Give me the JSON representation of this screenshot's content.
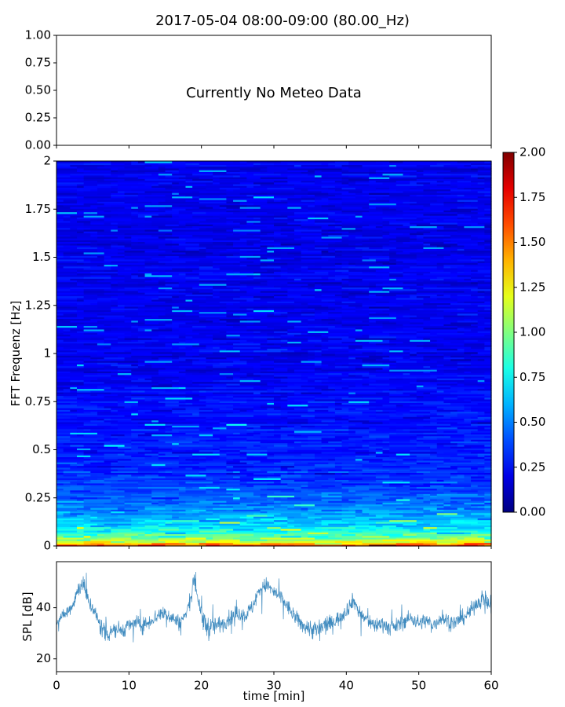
{
  "figure": {
    "title": "2017-05-04 08:00-09:00 (80.00_Hz)"
  },
  "chart_data": [
    {
      "id": "meteo",
      "type": "line",
      "title": "",
      "xlabel": "",
      "ylabel": "",
      "xlim": [
        0,
        60
      ],
      "ylim": [
        0,
        1
      ],
      "yticks": [
        0,
        0.25,
        0.5,
        0.75,
        1
      ],
      "ytick_labels": [
        "0.00",
        "0.25",
        "0.50",
        "0.75",
        "1.00"
      ],
      "xticks": [
        0,
        10,
        20,
        30,
        40,
        50,
        60
      ],
      "annotation": "Currently No Meteo Data",
      "series": []
    },
    {
      "id": "spectrogram",
      "type": "heatmap",
      "xlabel": "",
      "ylabel": "FFT Frequenz [Hz]",
      "xlim": [
        0,
        60
      ],
      "ylim": [
        0,
        2
      ],
      "yticks": [
        0,
        0.25,
        0.5,
        0.75,
        1,
        1.25,
        1.5,
        1.75,
        2
      ],
      "ytick_labels": [
        "0",
        "0.25",
        "0.5",
        "0.75",
        "1",
        "1.25",
        "1.5",
        "1.75",
        "2"
      ],
      "colormap": "jet",
      "colorbar": {
        "range": [
          0,
          2
        ],
        "ticks": [
          0,
          0.25,
          0.5,
          0.75,
          1,
          1.25,
          1.5,
          1.75,
          2
        ],
        "tick_labels": [
          "0.00",
          "0.25",
          "0.50",
          "0.75",
          "1.00",
          "1.25",
          "1.50",
          "1.75",
          "2.00"
        ]
      },
      "typical_level_by_frequency": [
        {
          "freq": 0.0,
          "level": 1.7
        },
        {
          "freq": 0.02,
          "level": 1.2
        },
        {
          "freq": 0.05,
          "level": 0.95
        },
        {
          "freq": 0.1,
          "level": 0.7
        },
        {
          "freq": 0.2,
          "level": 0.5
        },
        {
          "freq": 0.35,
          "level": 0.35
        },
        {
          "freq": 0.5,
          "level": 0.3
        },
        {
          "freq": 1.0,
          "level": 0.22
        },
        {
          "freq": 2.0,
          "level": 0.22
        }
      ]
    },
    {
      "id": "spl",
      "type": "line",
      "xlabel": "time [min]",
      "ylabel": "SPL [dB]",
      "xlim": [
        0,
        60
      ],
      "ylim": [
        15,
        58
      ],
      "yticks": [
        20,
        40
      ],
      "ytick_labels": [
        "20",
        "40"
      ],
      "xticks": [
        0,
        10,
        20,
        30,
        40,
        50,
        60
      ],
      "xtick_labels": [
        "0",
        "10",
        "20",
        "30",
        "40",
        "50",
        "60"
      ],
      "line_color": "#1f77b4",
      "series": [
        {
          "x": [
            0,
            1,
            2,
            3,
            3.5,
            4,
            4.5,
            5,
            6,
            7,
            8,
            9,
            10,
            11,
            12,
            13,
            14,
            15,
            16,
            17,
            18,
            18.5,
            19,
            19.5,
            20,
            21,
            22,
            23,
            24,
            25,
            26,
            27,
            28,
            29,
            30,
            31,
            32,
            33,
            34,
            35,
            36,
            37,
            38,
            39,
            40,
            41,
            42,
            43,
            44,
            45,
            46,
            47,
            48,
            49,
            50,
            51,
            52,
            53,
            54,
            55,
            56,
            57,
            58,
            59,
            60
          ],
          "y": [
            35,
            37,
            40,
            47,
            50,
            46,
            42,
            40,
            33,
            30,
            32,
            31,
            33,
            34,
            33,
            35,
            37,
            38,
            36,
            34,
            38,
            44,
            52,
            44,
            36,
            32,
            33,
            34,
            36,
            38,
            37,
            40,
            47,
            49,
            46,
            44,
            40,
            36,
            33,
            32,
            31,
            33,
            34,
            36,
            39,
            43,
            37,
            35,
            33,
            34,
            32,
            33,
            35,
            36,
            34,
            35,
            33,
            36,
            35,
            34,
            36,
            38,
            42,
            44,
            40
          ],
          "spread": [
            3,
            3,
            4,
            5,
            5,
            5,
            4,
            4,
            5,
            6,
            5,
            4,
            4,
            4,
            4,
            4,
            4,
            4,
            4,
            4,
            4,
            4,
            5,
            5,
            6,
            6,
            5,
            4,
            4,
            4,
            4,
            4,
            4,
            4,
            4,
            4,
            4,
            4,
            4,
            5,
            6,
            5,
            4,
            4,
            4,
            4,
            4,
            4,
            4,
            4,
            4,
            4,
            4,
            4,
            4,
            4,
            4,
            4,
            4,
            4,
            4,
            4,
            4,
            5,
            5
          ]
        }
      ]
    }
  ]
}
